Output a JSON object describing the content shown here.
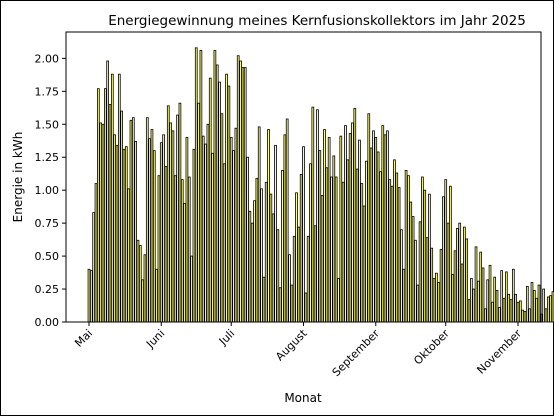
{
  "chart_data": {
    "type": "bar",
    "title": "Energiegewinnung meines Kernfusionskollektors im Jahr 2025",
    "xlabel": "Monat",
    "ylabel": "Energie in kWh",
    "ylim": [
      0,
      2.2
    ],
    "yticks": [
      "0.00",
      "0.25",
      "0.50",
      "0.75",
      "1.00",
      "1.25",
      "1.50",
      "1.75",
      "2.00"
    ],
    "ytick_values": [
      0,
      0.25,
      0.5,
      0.75,
      1.0,
      1.25,
      1.5,
      1.75,
      2.0
    ],
    "x_start": "2025-05-01",
    "xticks": [
      {
        "label": "Mai",
        "date": "2025-05-01"
      },
      {
        "label": "Juni",
        "date": "2025-06-01"
      },
      {
        "label": "Juli",
        "date": "2025-07-01"
      },
      {
        "label": "August",
        "date": "2025-08-01"
      },
      {
        "label": "September",
        "date": "2025-09-01"
      },
      {
        "label": "Oktober",
        "date": "2025-10-01"
      },
      {
        "label": "November",
        "date": "2025-11-01"
      }
    ],
    "grid": false,
    "bar_color": "#ffff80",
    "values": [
      0.4,
      0.39,
      0.83,
      1.05,
      1.77,
      1.51,
      1.5,
      1.77,
      1.98,
      1.65,
      1.88,
      1.42,
      1.34,
      1.88,
      1.6,
      1.31,
      1.33,
      1.01,
      1.53,
      1.55,
      1.37,
      0.62,
      0.58,
      0.32,
      0.51,
      1.55,
      1.39,
      1.46,
      1.3,
      0.4,
      1.11,
      1.36,
      1.42,
      1.18,
      1.64,
      1.51,
      1.45,
      1.11,
      1.57,
      1.66,
      1.08,
      0.9,
      1.4,
      1.1,
      0.5,
      1.31,
      2.08,
      1.66,
      2.06,
      1.41,
      1.35,
      1.5,
      1.85,
      1.28,
      2.06,
      1.95,
      1.82,
      1.58,
      1.2,
      1.88,
      1.79,
      1.4,
      1.3,
      1.47,
      2.02,
      1.98,
      1.93,
      1.93,
      1.25,
      0.84,
      0.75,
      0.92,
      1.09,
      1.48,
      1.01,
      0.34,
      1.06,
      1.46,
      0.97,
      0.82,
      1.34,
      0.7,
      0.26,
      1.15,
      1.42,
      1.54,
      0.51,
      0.28,
      0.65,
      0.98,
      0.72,
      1.12,
      1.33,
      0.22,
      0.65,
      1.2,
      1.63,
      0.73,
      1.61,
      1.3,
      0.96,
      1.46,
      1.17,
      1.4,
      1.1,
      1.26,
      1.1,
      0.33,
      1.41,
      1.06,
      1.49,
      1.23,
      1.43,
      1.51,
      1.62,
      1.16,
      1.38,
      1.05,
      0.88,
      1.22,
      1.58,
      1.32,
      1.45,
      1.4,
      1.29,
      1.14,
      1.49,
      1.42,
      1.45,
      1.08,
      1.03,
      1.23,
      1.13,
      1.02,
      0.7,
      0.4,
      1.15,
      1.11,
      0.91,
      0.8,
      0.62,
      0.28,
      0.76,
      1.1,
      1.0,
      0.64,
      0.97,
      0.56,
      0.33,
      0.37,
      0.3,
      0.55,
      0.95,
      1.08,
      0.75,
      1.03,
      0.36,
      0.54,
      0.71,
      0.75,
      0.44,
      0.72,
      0.63,
      0.17,
      0.33,
      0.25,
      0.57,
      0.31,
      0.53,
      0.41,
      0.1,
      0.32,
      0.43,
      0.15,
      0.34,
      0.24,
      0.11,
      0.39,
      0.18,
      0.38,
      0.21,
      0.17,
      0.4,
      0.21,
      0.15,
      0.16,
      0.09,
      0.08,
      0.27,
      0.1,
      0.3,
      0.24,
      0.18,
      0.28,
      0.06,
      0.25,
      0.1,
      0.19,
      0.2,
      0.23,
      0.2
    ]
  }
}
